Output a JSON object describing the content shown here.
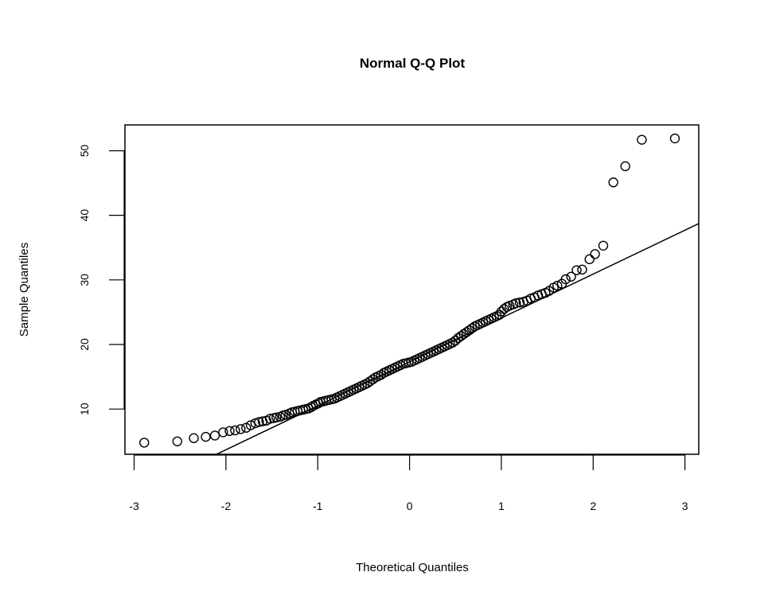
{
  "chart_data": {
    "type": "scatter",
    "title": "Normal Q-Q Plot",
    "xlabel": "Theoretical Quantiles",
    "ylabel": "Sample Quantiles",
    "xlim": [
      -3.1,
      3.15
    ],
    "ylim": [
      3.0,
      54.0
    ],
    "x_ticks": [
      -3,
      -2,
      -1,
      0,
      1,
      2,
      3
    ],
    "x_tick_labels": [
      "-3",
      "-2",
      "-1",
      "0",
      "1",
      "2",
      "3"
    ],
    "y_ticks": [
      10,
      20,
      30,
      40,
      50
    ],
    "y_tick_labels": [
      "10",
      "20",
      "30",
      "40",
      "50"
    ],
    "grid": false,
    "legend": "none",
    "reference_line": {
      "intercept": 17.3,
      "slope": 6.8
    },
    "points": [
      [
        -2.89,
        4.8
      ],
      [
        -2.53,
        5.0
      ],
      [
        -2.35,
        5.5
      ],
      [
        -2.22,
        5.7
      ],
      [
        -2.12,
        5.9
      ],
      [
        -2.03,
        6.4
      ],
      [
        -1.96,
        6.6
      ],
      [
        -1.9,
        6.7
      ],
      [
        -1.84,
        6.9
      ],
      [
        -1.78,
        7.1
      ],
      [
        -1.73,
        7.5
      ],
      [
        -1.68,
        7.8
      ],
      [
        -1.64,
        8.0
      ],
      [
        -1.6,
        8.1
      ],
      [
        -1.56,
        8.2
      ],
      [
        -1.52,
        8.5
      ],
      [
        -1.48,
        8.6
      ],
      [
        -1.45,
        8.7
      ],
      [
        -1.41,
        8.8
      ],
      [
        -1.38,
        9.0
      ],
      [
        -1.35,
        9.1
      ],
      [
        -1.31,
        9.3
      ],
      [
        -1.28,
        9.5
      ],
      [
        -1.25,
        9.6
      ],
      [
        -1.22,
        9.7
      ],
      [
        -1.19,
        9.8
      ],
      [
        -1.16,
        9.9
      ],
      [
        -1.13,
        10.0
      ],
      [
        -1.1,
        10.1
      ],
      [
        -1.07,
        10.3
      ],
      [
        -1.05,
        10.5
      ],
      [
        -1.02,
        10.7
      ],
      [
        -0.99,
        10.9
      ],
      [
        -0.97,
        11.1
      ],
      [
        -0.94,
        11.2
      ],
      [
        -0.91,
        11.3
      ],
      [
        -0.88,
        11.4
      ],
      [
        -0.85,
        11.5
      ],
      [
        -0.82,
        11.6
      ],
      [
        -0.79,
        11.8
      ],
      [
        -0.76,
        12.0
      ],
      [
        -0.73,
        12.2
      ],
      [
        -0.7,
        12.4
      ],
      [
        -0.67,
        12.6
      ],
      [
        -0.64,
        12.8
      ],
      [
        -0.61,
        13.0
      ],
      [
        -0.58,
        13.2
      ],
      [
        -0.55,
        13.4
      ],
      [
        -0.52,
        13.6
      ],
      [
        -0.49,
        13.8
      ],
      [
        -0.46,
        14.0
      ],
      [
        -0.43,
        14.3
      ],
      [
        -0.4,
        14.6
      ],
      [
        -0.37,
        14.9
      ],
      [
        -0.34,
        15.1
      ],
      [
        -0.31,
        15.3
      ],
      [
        -0.28,
        15.6
      ],
      [
        -0.25,
        15.8
      ],
      [
        -0.22,
        16.0
      ],
      [
        -0.19,
        16.2
      ],
      [
        -0.16,
        16.4
      ],
      [
        -0.13,
        16.6
      ],
      [
        -0.1,
        16.8
      ],
      [
        -0.07,
        17.0
      ],
      [
        -0.04,
        17.1
      ],
      [
        -0.01,
        17.2
      ],
      [
        0.02,
        17.3
      ],
      [
        0.05,
        17.5
      ],
      [
        0.08,
        17.7
      ],
      [
        0.11,
        17.9
      ],
      [
        0.14,
        18.1
      ],
      [
        0.17,
        18.3
      ],
      [
        0.2,
        18.5
      ],
      [
        0.23,
        18.7
      ],
      [
        0.26,
        18.9
      ],
      [
        0.29,
        19.1
      ],
      [
        0.32,
        19.3
      ],
      [
        0.35,
        19.5
      ],
      [
        0.38,
        19.7
      ],
      [
        0.41,
        19.9
      ],
      [
        0.44,
        20.1
      ],
      [
        0.47,
        20.3
      ],
      [
        0.5,
        20.6
      ],
      [
        0.53,
        21.0
      ],
      [
        0.56,
        21.3
      ],
      [
        0.59,
        21.6
      ],
      [
        0.62,
        21.9
      ],
      [
        0.65,
        22.2
      ],
      [
        0.68,
        22.5
      ],
      [
        0.71,
        22.8
      ],
      [
        0.74,
        23.0
      ],
      [
        0.77,
        23.2
      ],
      [
        0.8,
        23.4
      ],
      [
        0.83,
        23.6
      ],
      [
        0.86,
        23.8
      ],
      [
        0.89,
        24.0
      ],
      [
        0.92,
        24.2
      ],
      [
        0.95,
        24.4
      ],
      [
        0.98,
        24.6
      ],
      [
        1.0,
        25.1
      ],
      [
        1.03,
        25.5
      ],
      [
        1.06,
        25.8
      ],
      [
        1.09,
        26.0
      ],
      [
        1.13,
        26.2
      ],
      [
        1.16,
        26.4
      ],
      [
        1.2,
        26.5
      ],
      [
        1.24,
        26.6
      ],
      [
        1.28,
        26.8
      ],
      [
        1.32,
        27.1
      ],
      [
        1.36,
        27.3
      ],
      [
        1.4,
        27.6
      ],
      [
        1.44,
        27.8
      ],
      [
        1.48,
        28.0
      ],
      [
        1.52,
        28.3
      ],
      [
        1.57,
        28.8
      ],
      [
        1.61,
        29.1
      ],
      [
        1.66,
        29.4
      ],
      [
        1.7,
        30.1
      ],
      [
        1.76,
        30.5
      ],
      [
        1.82,
        31.5
      ],
      [
        1.88,
        31.6
      ],
      [
        1.96,
        33.2
      ],
      [
        2.02,
        34.0
      ],
      [
        2.11,
        35.3
      ],
      [
        2.22,
        45.1
      ],
      [
        2.35,
        47.6
      ],
      [
        2.53,
        51.7
      ],
      [
        2.89,
        51.9
      ]
    ]
  }
}
